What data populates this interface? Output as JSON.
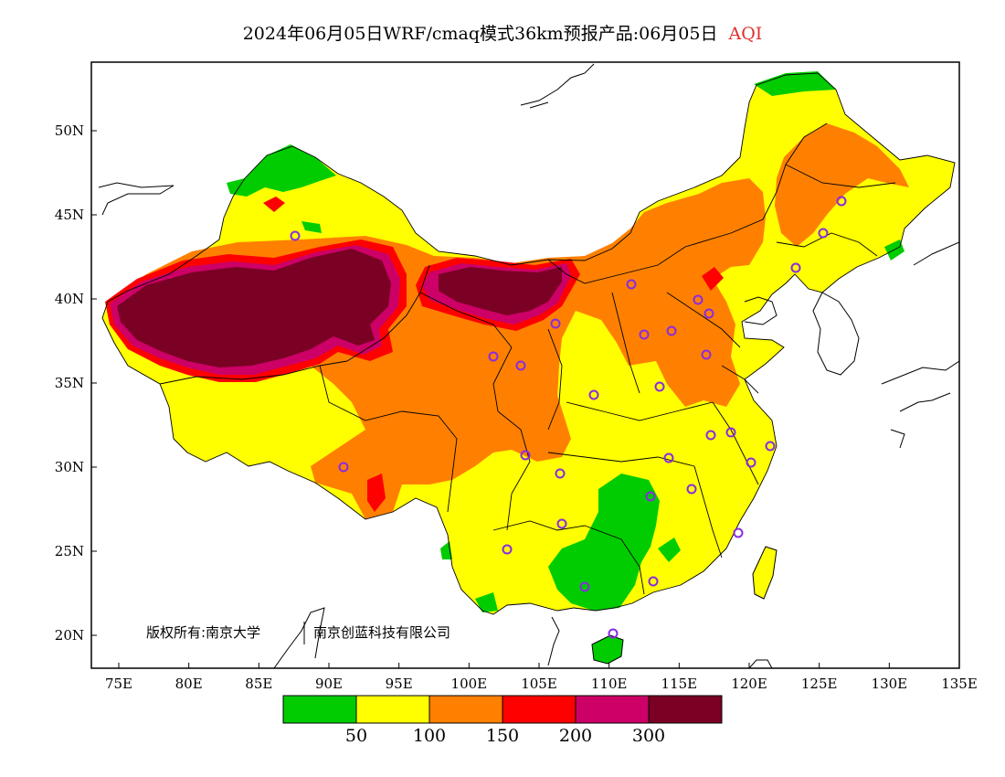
{
  "title": {
    "main": "2024年06月05日WRF/cmaq模式36km预报产品:06月05日",
    "variable": "AQI"
  },
  "axes": {
    "x_ticks": [
      "75E",
      "80E",
      "85E",
      "90E",
      "95E",
      "100E",
      "105E",
      "110E",
      "115E",
      "120E",
      "125E",
      "130E",
      "135E"
    ],
    "y_ticks": [
      "50N",
      "45N",
      "40N",
      "35N",
      "30N",
      "25N",
      "20N"
    ]
  },
  "copyright": {
    "left": "版权所有:南京大学",
    "right": "南京创蓝科技有限公司"
  },
  "legend": {
    "colors": [
      "#00cc00",
      "#ffff00",
      "#ff8000",
      "#ff0000",
      "#cc0066",
      "#7a0024"
    ],
    "labels": [
      "50",
      "100",
      "150",
      "200",
      "300"
    ]
  },
  "station_marker_color": "#8a2be2"
}
